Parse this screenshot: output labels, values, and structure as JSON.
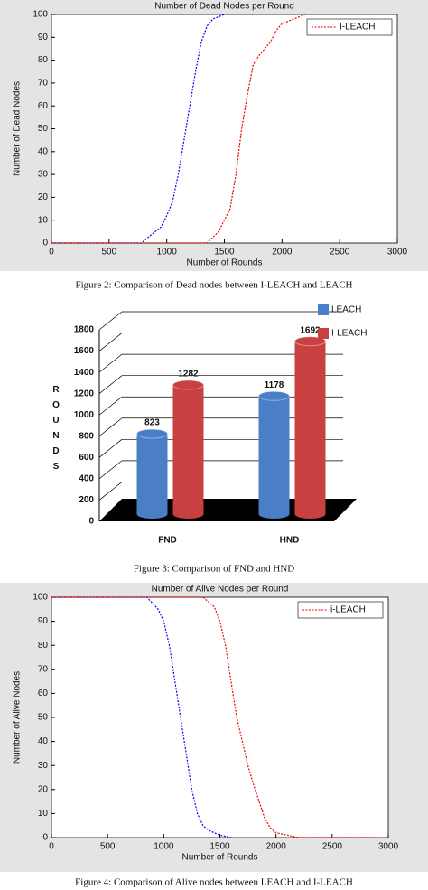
{
  "chart_data": [
    {
      "type": "line",
      "title": "Number of Dead Nodes per Round",
      "xlabel": "Number of Rounds",
      "ylabel": "Number of Dead Nodes",
      "xlim": [
        0,
        3000
      ],
      "xticks": [
        0,
        500,
        1000,
        1500,
        2000,
        2500,
        3000
      ],
      "ylim": [
        0,
        100
      ],
      "yticks": [
        0,
        10,
        20,
        30,
        40,
        50,
        60,
        70,
        80,
        90,
        100
      ],
      "legend": "upper right",
      "series": [
        {
          "name": null,
          "color": "#0000ee",
          "x": [
            0,
            780,
            850,
            950,
            1000,
            1050,
            1100,
            1150,
            1200,
            1250,
            1300,
            1350,
            1400,
            1500
          ],
          "values": [
            0,
            0,
            3,
            7,
            12,
            18,
            30,
            45,
            60,
            75,
            88,
            95,
            98,
            100
          ]
        },
        {
          "name": "I-LEACH",
          "color": "#ee0000",
          "x": [
            0,
            1350,
            1450,
            1550,
            1600,
            1650,
            1700,
            1750,
            1800,
            1900,
            1950,
            2000,
            2100,
            2200
          ],
          "values": [
            0,
            0,
            5,
            15,
            30,
            50,
            65,
            78,
            82,
            88,
            93,
            96,
            98,
            100
          ]
        }
      ],
      "caption": "Figure 2: Comparison of Dead nodes between I-LEACH and LEACH"
    },
    {
      "type": "bar3d",
      "categories": [
        "FND",
        "HND"
      ],
      "ylabel": "ROUNDS",
      "ylim": [
        0,
        1800
      ],
      "yticks": [
        0,
        200,
        400,
        600,
        800,
        1000,
        1200,
        1400,
        1600,
        1800
      ],
      "series": [
        {
          "name": "LEACH",
          "color": "#4a7fc8",
          "values": [
            823,
            1178
          ]
        },
        {
          "name": "I-LEACH",
          "color": "#c84040",
          "values": [
            1282,
            1692
          ]
        }
      ],
      "caption": "Figure 3: Comparison of FND and HND"
    },
    {
      "type": "line",
      "title": "Number of Alive Nodes per Round",
      "xlabel": "Number of Rounds",
      "ylabel": "Number of Alive Nodes",
      "xlim": [
        0,
        3000
      ],
      "xticks": [
        0,
        500,
        1000,
        1500,
        2000,
        2500,
        3000
      ],
      "ylim": [
        0,
        100
      ],
      "yticks": [
        0,
        10,
        20,
        30,
        40,
        50,
        60,
        70,
        80,
        90,
        100
      ],
      "legend": "upper right",
      "series": [
        {
          "name": null,
          "color": "#0000ee",
          "x": [
            0,
            850,
            950,
            1000,
            1050,
            1100,
            1150,
            1200,
            1250,
            1300,
            1350,
            1400,
            1500,
            1600
          ],
          "values": [
            100,
            100,
            95,
            90,
            80,
            65,
            50,
            35,
            20,
            10,
            5,
            3,
            1,
            0
          ]
        },
        {
          "name": "i-LEACH",
          "color": "#ee0000",
          "x": [
            0,
            1350,
            1450,
            1500,
            1550,
            1600,
            1650,
            1700,
            1750,
            1800,
            1850,
            1900,
            1950,
            2000,
            2100,
            2200,
            2900
          ],
          "values": [
            100,
            100,
            96,
            90,
            80,
            65,
            50,
            40,
            30,
            22,
            15,
            8,
            4,
            2,
            1,
            0,
            0
          ]
        }
      ],
      "caption": "Figure 4: Comparison of Alive nodes between LEACH and  I-LEACH"
    }
  ]
}
